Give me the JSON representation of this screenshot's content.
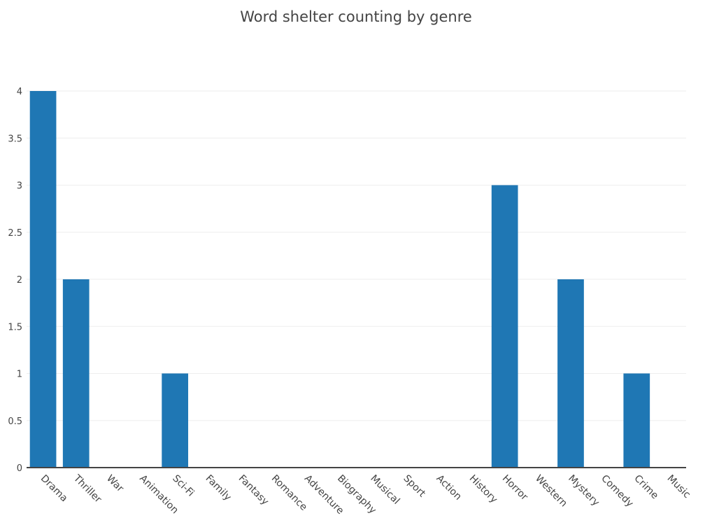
{
  "chart_data": {
    "type": "bar",
    "title": "Word shelter counting by genre",
    "xlabel": "",
    "ylabel": "",
    "categories": [
      "Drama",
      "Thriller",
      "War",
      "Animation",
      "Sci-Fi",
      "Family",
      "Fantasy",
      "Romance",
      "Adventure",
      "Biography",
      "Musical",
      "Sport",
      "Action",
      "History",
      "Horror",
      "Western",
      "Mystery",
      "Comedy",
      "Crime",
      "Music"
    ],
    "values": [
      4,
      2,
      0,
      0,
      1,
      0,
      0,
      0,
      0,
      0,
      0,
      0,
      0,
      0,
      3,
      0,
      2,
      0,
      1,
      0
    ],
    "ylim": [
      0,
      4
    ],
    "yticks": [
      "0",
      "0.5",
      "1",
      "1.5",
      "2",
      "2.5",
      "3",
      "3.5",
      "4"
    ],
    "grid": true,
    "bar_color": "#1f77b4",
    "grid_color": "#eeeeee",
    "axis_color": "#444444"
  }
}
